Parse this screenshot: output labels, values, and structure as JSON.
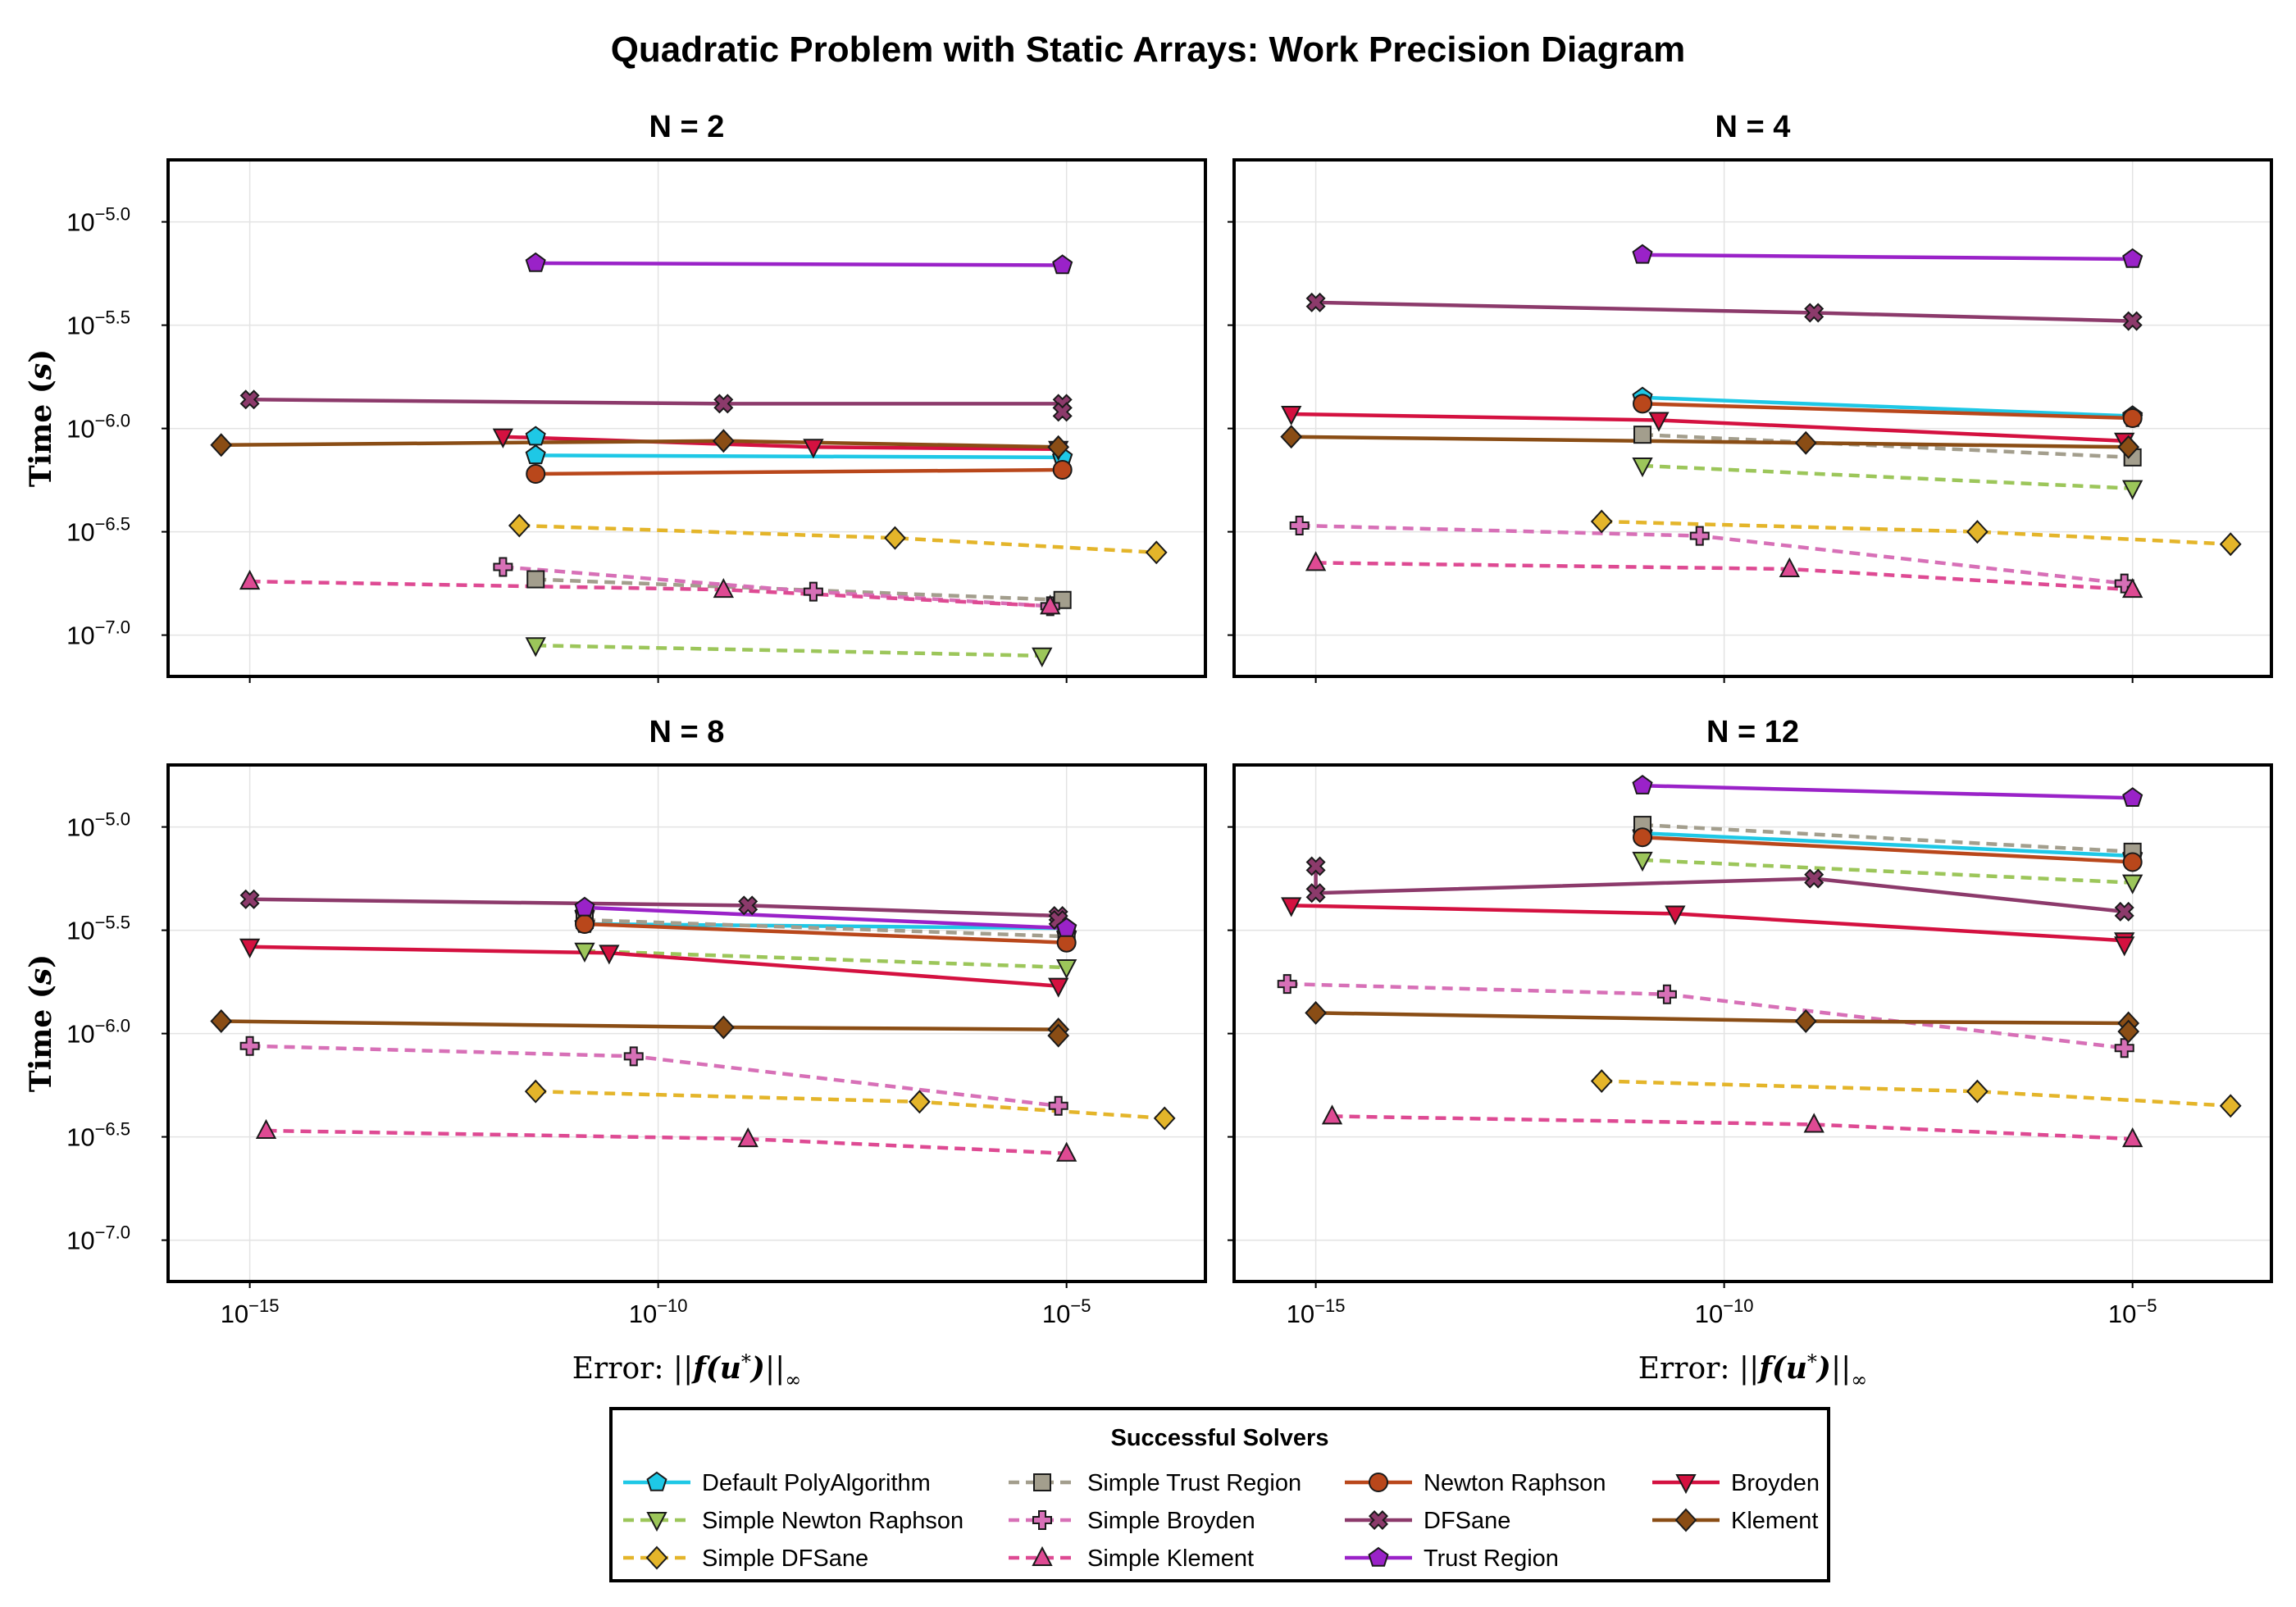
{
  "figure": {
    "title": "Quadratic Problem with Static Arrays: Work Precision Diagram"
  },
  "axes": {
    "xlabel": "Error: ||f(u*)||∞",
    "ylabel": "Time (s)",
    "xscale": "log10",
    "yscale": "log10",
    "xlim": [
      -16.0,
      -3.3
    ],
    "ylim": [
      -7.2,
      -4.7
    ],
    "xticks": [
      -15,
      -10,
      -5
    ],
    "yticks": [
      -7.0,
      -6.5,
      -6.0,
      -5.5,
      -5.0
    ],
    "xtick_labels": [
      "10−15",
      "10−10",
      "10−5"
    ],
    "ytick_labels": [
      "10−7.0",
      "10−6.5",
      "10−6.0",
      "10−5.5",
      "10−5.0"
    ],
    "grid": true
  },
  "legend": {
    "title": "Successful Solvers",
    "placement": "bottom-center",
    "columns": 4
  },
  "solvers": [
    {
      "name": "Default PolyAlgorithm",
      "color": "#1ec8e6",
      "marker": "pentagon",
      "dashed": false
    },
    {
      "name": "Simple Newton Raphson",
      "color": "#9cc65a",
      "marker": "triangle-down",
      "dashed": true
    },
    {
      "name": "Simple DFSane",
      "color": "#e4b52a",
      "marker": "diamond",
      "dashed": true
    },
    {
      "name": "Simple Trust Region",
      "color": "#a39e8d",
      "marker": "square",
      "dashed": true
    },
    {
      "name": "Simple Broyden",
      "color": "#d770b7",
      "marker": "plus",
      "dashed": true
    },
    {
      "name": "Simple Klement",
      "color": "#de4a93",
      "marker": "triangle-up",
      "dashed": true
    },
    {
      "name": "Newton Raphson",
      "color": "#b9471b",
      "marker": "circle",
      "dashed": false
    },
    {
      "name": "DFSane",
      "color": "#8c3a6b",
      "marker": "cross",
      "dashed": false
    },
    {
      "name": "Trust Region",
      "color": "#9a22c8",
      "marker": "pentagon",
      "dashed": false
    },
    {
      "name": "Broyden",
      "color": "#d41140",
      "marker": "triangle-down",
      "dashed": false
    },
    {
      "name": "Klement",
      "color": "#8a4d15",
      "marker": "diamond",
      "dashed": false
    }
  ],
  "chart_data": [
    {
      "type": "line",
      "title": "N = 2",
      "series": [
        {
          "name": "Default PolyAlgorithm",
          "points": [
            [
              -11.5,
              -6.04
            ],
            [
              -11.5,
              -6.13
            ],
            [
              -5.05,
              -6.14
            ],
            [
              -5.05,
              -6.14
            ]
          ]
        },
        {
          "name": "Simple Newton Raphson",
          "points": [
            [
              -11.5,
              -7.05
            ],
            [
              -5.3,
              -7.1
            ]
          ]
        },
        {
          "name": "Simple DFSane",
          "points": [
            [
              -11.7,
              -6.47
            ],
            [
              -7.1,
              -6.53
            ],
            [
              -3.9,
              -6.6
            ]
          ]
        },
        {
          "name": "Simple Trust Region",
          "points": [
            [
              -11.5,
              -6.73
            ],
            [
              -5.05,
              -6.83
            ]
          ]
        },
        {
          "name": "Simple Broyden",
          "points": [
            [
              -11.9,
              -6.67
            ],
            [
              -8.1,
              -6.79
            ],
            [
              -5.2,
              -6.86
            ]
          ]
        },
        {
          "name": "Simple Klement",
          "points": [
            [
              -15.0,
              -6.74
            ],
            [
              -9.2,
              -6.78
            ],
            [
              -5.2,
              -6.86
            ]
          ]
        },
        {
          "name": "Newton Raphson",
          "points": [
            [
              -11.5,
              -6.22
            ],
            [
              -5.05,
              -6.2
            ]
          ]
        },
        {
          "name": "DFSane",
          "points": [
            [
              -15.0,
              -5.86
            ],
            [
              -9.2,
              -5.88
            ],
            [
              -5.05,
              -5.88
            ],
            [
              -5.05,
              -5.92
            ]
          ]
        },
        {
          "name": "Trust Region",
          "points": [
            [
              -11.5,
              -5.2
            ],
            [
              -5.05,
              -5.21
            ]
          ]
        },
        {
          "name": "Broyden",
          "points": [
            [
              -11.9,
              -6.04
            ],
            [
              -8.1,
              -6.09
            ],
            [
              -5.1,
              -6.1
            ]
          ]
        },
        {
          "name": "Klement",
          "points": [
            [
              -15.35,
              -6.08
            ],
            [
              -9.2,
              -6.06
            ],
            [
              -5.1,
              -6.09
            ]
          ]
        }
      ]
    },
    {
      "type": "line",
      "title": "N = 4",
      "series": [
        {
          "name": "Default PolyAlgorithm",
          "points": [
            [
              -11.0,
              -5.85
            ],
            [
              -5.0,
              -5.94
            ],
            [
              -5.0,
              -5.95
            ]
          ]
        },
        {
          "name": "Simple Newton Raphson",
          "points": [
            [
              -11.0,
              -6.18
            ],
            [
              -5.0,
              -6.29
            ]
          ]
        },
        {
          "name": "Simple DFSane",
          "points": [
            [
              -11.5,
              -6.45
            ],
            [
              -6.9,
              -6.5
            ],
            [
              -3.8,
              -6.56
            ]
          ]
        },
        {
          "name": "Simple Trust Region",
          "points": [
            [
              -11.0,
              -6.03
            ],
            [
              -5.0,
              -6.14
            ]
          ]
        },
        {
          "name": "Simple Broyden",
          "points": [
            [
              -15.2,
              -6.47
            ],
            [
              -10.3,
              -6.52
            ],
            [
              -5.1,
              -6.75
            ]
          ]
        },
        {
          "name": "Simple Klement",
          "points": [
            [
              -15.0,
              -6.65
            ],
            [
              -9.2,
              -6.68
            ],
            [
              -5.0,
              -6.78
            ]
          ]
        },
        {
          "name": "Newton Raphson",
          "points": [
            [
              -11.0,
              -5.88
            ],
            [
              -5.0,
              -5.95
            ]
          ]
        },
        {
          "name": "DFSane",
          "points": [
            [
              -15.0,
              -5.39
            ],
            [
              -8.9,
              -5.44
            ],
            [
              -5.0,
              -5.48
            ]
          ]
        },
        {
          "name": "Trust Region",
          "points": [
            [
              -11.0,
              -5.16
            ],
            [
              -5.0,
              -5.18
            ]
          ]
        },
        {
          "name": "Broyden",
          "points": [
            [
              -15.3,
              -5.93
            ],
            [
              -10.8,
              -5.96
            ],
            [
              -5.1,
              -6.06
            ]
          ]
        },
        {
          "name": "Klement",
          "points": [
            [
              -15.3,
              -6.04
            ],
            [
              -9.0,
              -6.07
            ],
            [
              -5.05,
              -6.09
            ]
          ]
        }
      ]
    },
    {
      "type": "line",
      "title": "N = 8",
      "series": [
        {
          "name": "Default PolyAlgorithm",
          "points": [
            [
              -10.9,
              -5.42
            ],
            [
              -10.9,
              -5.47
            ],
            [
              -5.0,
              -5.49
            ],
            [
              -5.0,
              -5.52
            ]
          ]
        },
        {
          "name": "Simple Newton Raphson",
          "points": [
            [
              -10.9,
              -5.6
            ],
            [
              -5.0,
              -5.68
            ]
          ]
        },
        {
          "name": "Simple DFSane",
          "points": [
            [
              -11.5,
              -6.28
            ],
            [
              -6.8,
              -6.33
            ],
            [
              -3.8,
              -6.41
            ]
          ]
        },
        {
          "name": "Simple Trust Region",
          "points": [
            [
              -10.9,
              -5.45
            ],
            [
              -5.0,
              -5.53
            ]
          ]
        },
        {
          "name": "Simple Broyden",
          "points": [
            [
              -15.0,
              -6.06
            ],
            [
              -10.3,
              -6.11
            ],
            [
              -5.1,
              -6.35
            ]
          ]
        },
        {
          "name": "Simple Klement",
          "points": [
            [
              -14.8,
              -6.47
            ],
            [
              -8.9,
              -6.51
            ],
            [
              -5.0,
              -6.58
            ]
          ]
        },
        {
          "name": "Newton Raphson",
          "points": [
            [
              -10.9,
              -5.47
            ],
            [
              -5.0,
              -5.56
            ]
          ]
        },
        {
          "name": "DFSane",
          "points": [
            [
              -15.0,
              -5.35
            ],
            [
              -8.9,
              -5.38
            ],
            [
              -5.1,
              -5.43
            ],
            [
              -5.1,
              -5.45
            ]
          ]
        },
        {
          "name": "Trust Region",
          "points": [
            [
              -10.9,
              -5.39
            ],
            [
              -5.0,
              -5.49
            ]
          ]
        },
        {
          "name": "Broyden",
          "points": [
            [
              -15.0,
              -5.58
            ],
            [
              -10.6,
              -5.61
            ],
            [
              -5.1,
              -5.77
            ]
          ]
        },
        {
          "name": "Klement",
          "points": [
            [
              -15.35,
              -5.94
            ],
            [
              -9.2,
              -5.97
            ],
            [
              -5.1,
              -5.98
            ],
            [
              -5.1,
              -6.01
            ]
          ]
        }
      ]
    },
    {
      "type": "line",
      "title": "N = 12",
      "series": [
        {
          "name": "Default PolyAlgorithm",
          "points": [
            [
              -11.0,
              -5.03
            ],
            [
              -5.0,
              -5.14
            ]
          ]
        },
        {
          "name": "Simple Newton Raphson",
          "points": [
            [
              -11.0,
              -5.16
            ],
            [
              -5.0,
              -5.27
            ]
          ]
        },
        {
          "name": "Simple DFSane",
          "points": [
            [
              -11.5,
              -6.23
            ],
            [
              -6.9,
              -6.28
            ],
            [
              -3.8,
              -6.35
            ]
          ]
        },
        {
          "name": "Simple Trust Region",
          "points": [
            [
              -11.0,
              -4.99
            ],
            [
              -5.0,
              -5.12
            ]
          ]
        },
        {
          "name": "Simple Broyden",
          "points": [
            [
              -15.35,
              -5.76
            ],
            [
              -10.7,
              -5.81
            ],
            [
              -5.1,
              -6.07
            ]
          ]
        },
        {
          "name": "Simple Klement",
          "points": [
            [
              -14.8,
              -6.4
            ],
            [
              -8.9,
              -6.44
            ],
            [
              -5.0,
              -6.51
            ]
          ]
        },
        {
          "name": "Newton Raphson",
          "points": [
            [
              -11.0,
              -5.05
            ],
            [
              -5.0,
              -5.17
            ]
          ]
        },
        {
          "name": "DFSane",
          "points": [
            [
              -15.0,
              -5.19
            ],
            [
              -15.0,
              -5.32
            ],
            [
              -8.9,
              -5.25
            ],
            [
              -5.1,
              -5.41
            ]
          ]
        },
        {
          "name": "Trust Region",
          "points": [
            [
              -11.0,
              -4.8
            ],
            [
              -5.0,
              -4.86
            ]
          ]
        },
        {
          "name": "Broyden",
          "points": [
            [
              -15.3,
              -5.38
            ],
            [
              -10.6,
              -5.42
            ],
            [
              -5.1,
              -5.55
            ],
            [
              -5.1,
              -5.57
            ]
          ]
        },
        {
          "name": "Klement",
          "points": [
            [
              -15.0,
              -5.9
            ],
            [
              -9.0,
              -5.94
            ],
            [
              -5.05,
              -5.95
            ],
            [
              -5.05,
              -5.99
            ]
          ]
        }
      ]
    }
  ]
}
